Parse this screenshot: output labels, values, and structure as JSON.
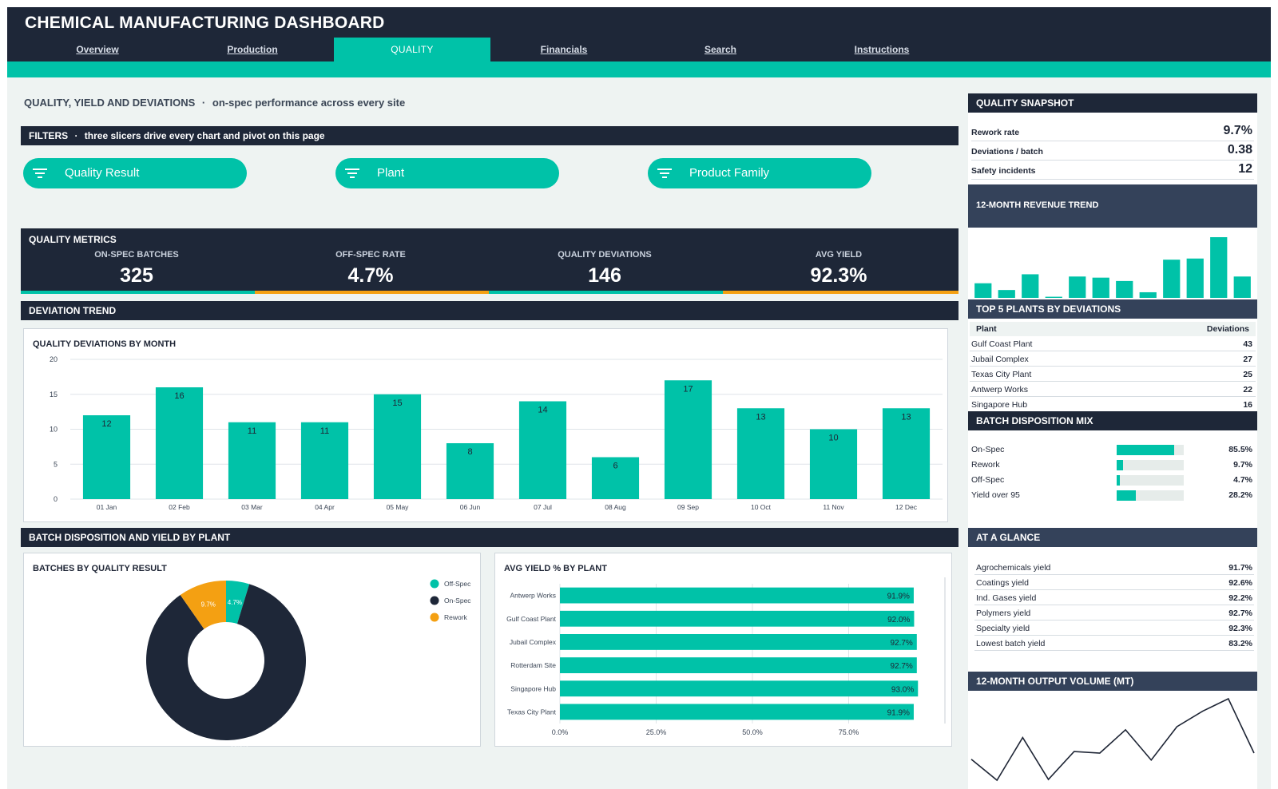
{
  "header": {
    "title": "CHEMICAL MANUFACTURING DASHBOARD",
    "tabs": [
      {
        "label": "Overview",
        "active": false
      },
      {
        "label": "Production",
        "active": false
      },
      {
        "label": "QUALITY",
        "active": true
      },
      {
        "label": "Financials",
        "active": false
      },
      {
        "label": "Search",
        "active": false
      },
      {
        "label": "Instructions",
        "active": false
      }
    ]
  },
  "page": {
    "title": "QUALITY, YIELD AND DEVIATIONS",
    "separator": "·",
    "subtitle": "on-spec performance across every site"
  },
  "filters": {
    "title": "FILTERS",
    "separator": "·",
    "subtitle": "three slicers drive every chart and pivot on this page",
    "slicers": [
      "Quality Result",
      "Plant",
      "Product Family"
    ]
  },
  "metrics": {
    "title": "QUALITY METRICS",
    "items": [
      {
        "label": "ON-SPEC BATCHES",
        "value": "325"
      },
      {
        "label": "OFF-SPEC RATE",
        "value": "4.7%"
      },
      {
        "label": "QUALITY DEVIATIONS",
        "value": "146"
      },
      {
        "label": "AVG YIELD",
        "value": "92.3%"
      }
    ]
  },
  "sections": {
    "deviation_trend": "DEVIATION TREND",
    "disposition": "BATCH DISPOSITION AND YIELD BY PLANT"
  },
  "colors": {
    "teal": "#00c2a8",
    "navy": "#1e2738",
    "orange": "#f4a012"
  },
  "chart_data": [
    {
      "type": "bar",
      "title": "QUALITY DEVIATIONS BY MONTH",
      "categories": [
        "01 Jan",
        "02 Feb",
        "03 Mar",
        "04 Apr",
        "05 May",
        "06 Jun",
        "07 Jul",
        "08 Aug",
        "09 Sep",
        "10 Oct",
        "11 Nov",
        "12 Dec"
      ],
      "values": [
        12,
        16,
        11,
        11,
        15,
        8,
        14,
        6,
        17,
        13,
        10,
        13
      ],
      "yticks": [
        0,
        5,
        10,
        15,
        20
      ],
      "ylim": [
        0,
        20
      ],
      "grid": true,
      "color": "#00c2a8"
    },
    {
      "type": "pie",
      "title": "BATCHES BY QUALITY RESULT",
      "slices": [
        {
          "name": "Off-Spec",
          "value": 4.7,
          "label": "4.7%",
          "color": "#00c2a8"
        },
        {
          "name": "On-Spec",
          "value": 85.5,
          "label": "85.5%",
          "color": "#1e2738"
        },
        {
          "name": "Rework",
          "value": 9.7,
          "label": "9.7%",
          "color": "#f4a012"
        }
      ],
      "donut": true,
      "legend_position": "top-right"
    },
    {
      "type": "bar",
      "orientation": "horizontal",
      "title": "AVG YIELD % BY PLANT",
      "categories": [
        "Antwerp Works",
        "Gulf Coast Plant",
        "Jubail Complex",
        "Rotterdam Site",
        "Singapore Hub",
        "Texas City Plant"
      ],
      "values": [
        91.9,
        92.0,
        92.7,
        92.7,
        93.0,
        91.9
      ],
      "labels": [
        "91.9%",
        "92.0%",
        "92.7%",
        "92.7%",
        "93.0%",
        "91.9%"
      ],
      "xticks": [
        "0.0%",
        "25.0%",
        "50.0%",
        "75.0%"
      ],
      "xlim": [
        0,
        100
      ],
      "color": "#00c2a8"
    },
    {
      "type": "bar",
      "title": "12-MONTH REVENUE TREND",
      "values": [
        6.5,
        3.5,
        10.5,
        0.5,
        9.5,
        9,
        7.5,
        2.5,
        17,
        17.5,
        27,
        9.5
      ],
      "color": "#00c2a8"
    },
    {
      "type": "line",
      "title": "12-MONTH OUTPUT VOLUME (MT)",
      "values": [
        30,
        3,
        58,
        4,
        40,
        38,
        68,
        29,
        72,
        92,
        108,
        38
      ],
      "color": "#1e2535"
    }
  ],
  "snapshot": {
    "title": "QUALITY SNAPSHOT",
    "rows": [
      {
        "label": "Rework rate",
        "value": "9.7%"
      },
      {
        "label": "Deviations / batch",
        "value": "0.38"
      },
      {
        "label": "Safety incidents",
        "value": "12"
      }
    ]
  },
  "top_plants": {
    "title": "TOP 5 PLANTS BY DEVIATIONS",
    "headers": [
      "Plant",
      "Deviations"
    ],
    "rows": [
      {
        "plant": "Gulf Coast Plant",
        "value": "43"
      },
      {
        "plant": "Jubail Complex",
        "value": "27"
      },
      {
        "plant": "Texas City Plant",
        "value": "25"
      },
      {
        "plant": "Antwerp Works",
        "value": "22"
      },
      {
        "plant": "Singapore Hub",
        "value": "16"
      }
    ]
  },
  "disposition_mix": {
    "title": "BATCH DISPOSITION MIX",
    "rows": [
      {
        "label": "On-Spec",
        "value": "85.5%",
        "fraction": 0.855
      },
      {
        "label": "Rework",
        "value": "9.7%",
        "fraction": 0.097
      },
      {
        "label": "Off-Spec",
        "value": "4.7%",
        "fraction": 0.047
      },
      {
        "label": "Yield over 95",
        "value": "28.2%",
        "fraction": 0.282
      }
    ]
  },
  "at_a_glance": {
    "title": "AT A GLANCE",
    "rows": [
      {
        "label": "Agrochemicals yield",
        "value": "91.7%"
      },
      {
        "label": "Coatings yield",
        "value": "92.6%"
      },
      {
        "label": "Ind. Gases yield",
        "value": "92.2%"
      },
      {
        "label": "Polymers yield",
        "value": "92.7%"
      },
      {
        "label": "Specialty yield",
        "value": "92.3%"
      },
      {
        "label": "Lowest batch yield",
        "value": "83.2%"
      }
    ]
  }
}
